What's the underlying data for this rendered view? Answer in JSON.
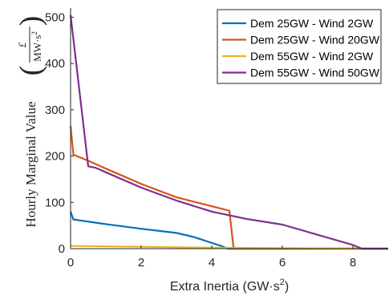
{
  "chart_data": {
    "type": "line",
    "xlabel": "Extra Inertia (GW·s",
    "xlabel_sup": "2",
    "xlabel_close": ")",
    "ylabel": "Hourly Marginal Value",
    "yunit": {
      "numerator": "£",
      "denominator": "MW·s",
      "denominator_sup": "2"
    },
    "xlim": [
      0,
      9
    ],
    "ylim": [
      0,
      520
    ],
    "xticks": [
      0,
      2,
      4,
      6,
      8
    ],
    "yticks": [
      0,
      100,
      200,
      300,
      400,
      500
    ],
    "grid": false,
    "legend_position": "top-right",
    "series": [
      {
        "name": "Dem 25GW - Wind 2GW",
        "color": "#0072BD",
        "x": [
          0,
          0.08,
          1,
          2,
          3,
          3.5,
          4.3,
          4.45,
          9
        ],
        "y": [
          80,
          63,
          53,
          43,
          34,
          25,
          5,
          0,
          0
        ]
      },
      {
        "name": "Dem 25GW - Wind 20GW",
        "color": "#D95319",
        "x": [
          0,
          0.08,
          0.5,
          1,
          2,
          3,
          4.5,
          4.62,
          9
        ],
        "y": [
          265,
          203,
          190,
          173,
          140,
          111,
          82,
          0,
          0
        ]
      },
      {
        "name": "Dem 55GW - Wind 2GW",
        "color": "#EDB120",
        "x": [
          0,
          2,
          4,
          8.2,
          9
        ],
        "y": [
          6,
          4,
          2,
          0,
          0
        ]
      },
      {
        "name": "Dem 55GW - Wind 50GW",
        "color": "#7E2F8E",
        "x": [
          0,
          0.5,
          0.7,
          1,
          2,
          3,
          4,
          5,
          6,
          7,
          8,
          8.25,
          9
        ],
        "y": [
          505,
          178,
          175,
          165,
          132,
          104,
          80,
          64,
          52,
          30,
          8,
          0,
          0
        ]
      }
    ]
  }
}
